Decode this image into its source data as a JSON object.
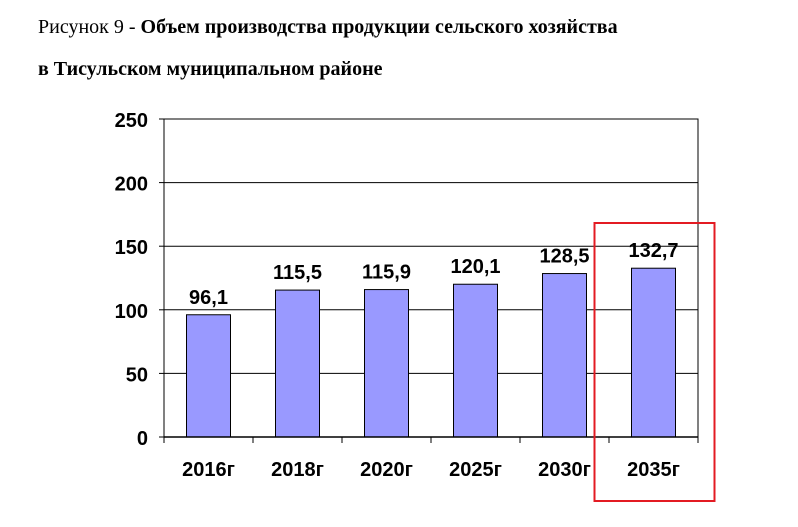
{
  "caption": {
    "prefix": "Рисунок 9 - ",
    "line1_bold": "Объем производства продукции сельского хозяйства",
    "line2_bold": "в Тисульском муниципальном районе"
  },
  "chart_data": {
    "type": "bar",
    "categories": [
      "2016г",
      "2018г",
      "2020г",
      "2025г",
      "2030г",
      "2035г"
    ],
    "values": [
      96.1,
      115.5,
      115.9,
      120.1,
      128.5,
      132.7
    ],
    "value_labels": [
      "96,1",
      "115,5",
      "115,9",
      "120,1",
      "128,5",
      "132,7"
    ],
    "yticks": [
      "0",
      "50",
      "100",
      "150",
      "200",
      "250"
    ],
    "ylim": [
      0,
      250
    ],
    "grid": true,
    "bar_color": "#9999ff",
    "highlight": {
      "category": "2035г",
      "color": "#e31b23"
    }
  }
}
